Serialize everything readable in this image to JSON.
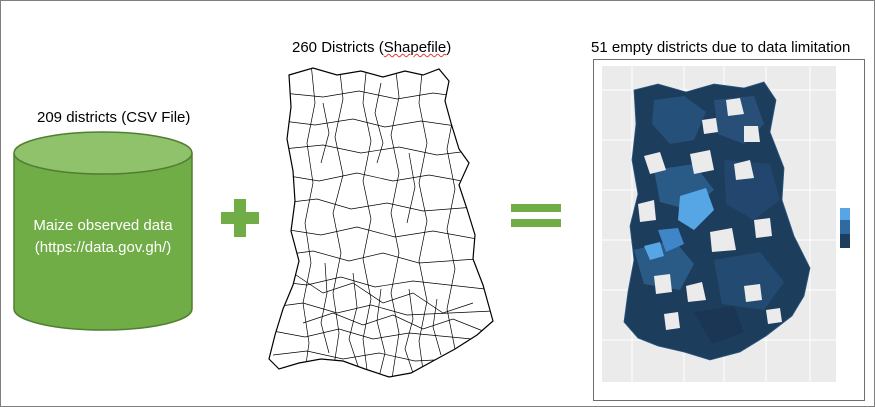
{
  "csv": {
    "heading": "209 districts (CSV File)",
    "body_line1": "Maize observed data",
    "body_line2": "(https://data.gov.gh/)",
    "color": "#70ad47"
  },
  "shapefile": {
    "heading_prefix": "260 Districts (",
    "heading_word": "Shapefile",
    "heading_suffix": ")"
  },
  "result": {
    "heading": "51 empty districts due to data limitation",
    "dark_color": "#1d3d5c",
    "light_color": "#56a6e6",
    "background_color": "#ebebeb"
  },
  "operators": {
    "plus_icon": "plus-icon",
    "equals_icon": "equals-icon",
    "color": "#70ad47"
  }
}
